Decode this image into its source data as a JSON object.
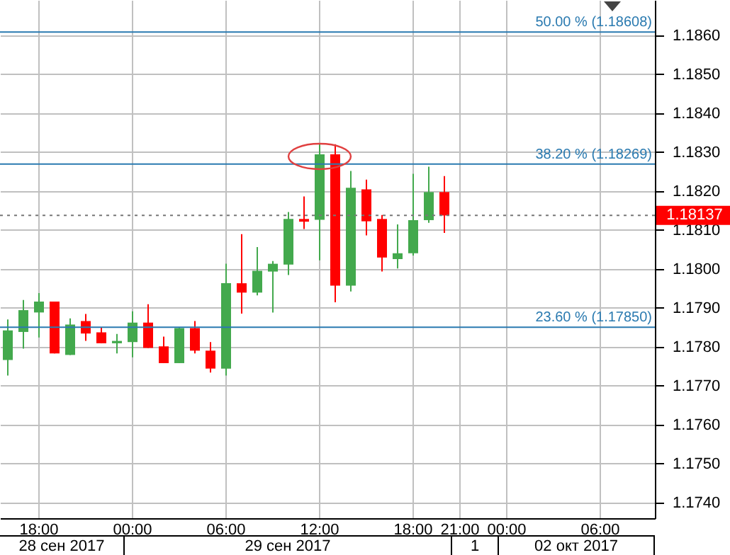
{
  "chart_data": {
    "type": "candlestick",
    "categories": [
      null,
      null,
      "18:00",
      null,
      null,
      null,
      null,
      null,
      "00:00",
      null,
      null,
      null,
      null,
      null,
      "06:00",
      null,
      null,
      null,
      null,
      null,
      "12:00",
      null,
      null,
      null,
      null,
      null,
      "18:00",
      null,
      null,
      "21:00",
      null,
      null,
      "00:00",
      null,
      null,
      null,
      null,
      null,
      "06:00",
      null,
      null,
      null
    ],
    "ohlc": [
      [
        1.17766,
        1.1787,
        1.17726,
        1.17842
      ],
      [
        1.17838,
        1.1792,
        1.17795,
        1.17894
      ],
      [
        1.17888,
        1.17938,
        1.17824,
        1.17916
      ],
      [
        1.17916,
        1.17916,
        1.17783,
        1.17783
      ],
      [
        1.17779,
        1.17873,
        1.17779,
        1.17857
      ],
      [
        1.17866,
        1.17884,
        1.17815,
        1.17834
      ],
      [
        1.17837,
        1.1785,
        1.17809,
        1.17809
      ],
      [
        1.17809,
        1.17833,
        1.17783,
        1.17815
      ],
      [
        1.17812,
        1.17891,
        1.17773,
        1.17862
      ],
      [
        1.17862,
        1.17909,
        1.17797,
        1.17797
      ],
      [
        1.17801,
        1.17826,
        1.17758,
        1.17758
      ],
      [
        1.17758,
        1.1785,
        1.17758,
        1.17848
      ],
      [
        1.17848,
        1.17866,
        1.17783,
        1.1779
      ],
      [
        1.1779,
        1.17812,
        1.17734,
        1.17744
      ],
      [
        1.17744,
        1.18013,
        1.17726,
        1.17963
      ],
      [
        1.17963,
        1.18089,
        1.17885,
        1.17939
      ],
      [
        1.17939,
        1.18056,
        1.17932,
        1.17995
      ],
      [
        1.17993,
        1.1802,
        1.17888,
        1.18013
      ],
      [
        1.18011,
        1.18146,
        1.17984,
        1.18128
      ],
      [
        1.18128,
        1.18186,
        1.18102,
        1.18121
      ],
      [
        1.18126,
        1.18323,
        1.18022,
        1.18294
      ],
      [
        1.18294,
        1.1832,
        1.17914,
        1.17957
      ],
      [
        1.17957,
        1.18251,
        1.17942,
        1.18208
      ],
      [
        1.18204,
        1.18229,
        1.18086,
        1.18122
      ],
      [
        1.18128,
        1.18138,
        1.17993,
        1.18029
      ],
      [
        1.18025,
        1.18114,
        1.18001,
        1.1804
      ],
      [
        1.1804,
        1.18244,
        1.18034,
        1.18125
      ],
      [
        1.18125,
        1.18262,
        1.18118,
        1.18197
      ],
      [
        1.18197,
        1.18238,
        1.18092,
        1.18137
      ],
      null,
      null,
      null,
      null,
      null,
      null,
      null,
      null,
      null,
      null,
      null,
      null,
      null
    ],
    "colors": [
      "#43a94d",
      "#43a94d",
      "#43a94d",
      "#ff0000",
      "#43a94d",
      "#ff0000",
      "#ff0000",
      "#43a94d",
      "#43a94d",
      "#ff0000",
      "#ff0000",
      "#43a94d",
      "#ff0000",
      "#ff0000",
      "#43a94d",
      "#ff0000",
      "#43a94d",
      "#43a94d",
      "#43a94d",
      "#ff0000",
      "#43a94d",
      "#ff0000",
      "#43a94d",
      "#ff0000",
      "#ff0000",
      "#43a94d",
      "#43a94d",
      "#43a94d",
      "#ff0000",
      null,
      null,
      null,
      null,
      null,
      null,
      null,
      null,
      null,
      null,
      null,
      null,
      null
    ],
    "ylim": [
      1.1736,
      1.1869
    ],
    "yticks": [
      {
        "value": 1.174,
        "label": "1.1740"
      },
      {
        "value": 1.175,
        "label": "1.1750"
      },
      {
        "value": 1.176,
        "label": "1.1760"
      },
      {
        "value": 1.177,
        "label": "1.1770"
      },
      {
        "value": 1.178,
        "label": "1.1780"
      },
      {
        "value": 1.179,
        "label": "1.1790"
      },
      {
        "value": 1.18,
        "label": "1.1800"
      },
      {
        "value": 1.181,
        "label": "1.1810"
      },
      {
        "value": 1.182,
        "label": "1.1820"
      },
      {
        "value": 1.183,
        "label": "1.1830"
      },
      {
        "value": 1.184,
        "label": "1.1840"
      },
      {
        "value": 1.185,
        "label": "1.1850"
      },
      {
        "value": 1.186,
        "label": "1.1860"
      }
    ],
    "grid": true,
    "ref_lines": [
      {
        "axis": "y",
        "value": 1.18608,
        "label": "50.00 % (1.18608)",
        "color": "#2a7ab0",
        "line_style": "solid"
      },
      {
        "axis": "y",
        "value": 1.18269,
        "label": "38.20 % (1.18269)",
        "color": "#2a7ab0",
        "line_style": "solid"
      },
      {
        "axis": "y",
        "value": 1.1785,
        "label": "23.60 % (1.17850)",
        "color": "#2a7ab0",
        "line_style": "solid"
      },
      {
        "axis": "y",
        "value": 1.18137,
        "label": "1.18137",
        "color": "#777777",
        "line_style": "dotted"
      }
    ],
    "annotations": [
      "28 сен 2017",
      "29 сен 2017",
      "1",
      "02 окт 2017"
    ]
  }
}
